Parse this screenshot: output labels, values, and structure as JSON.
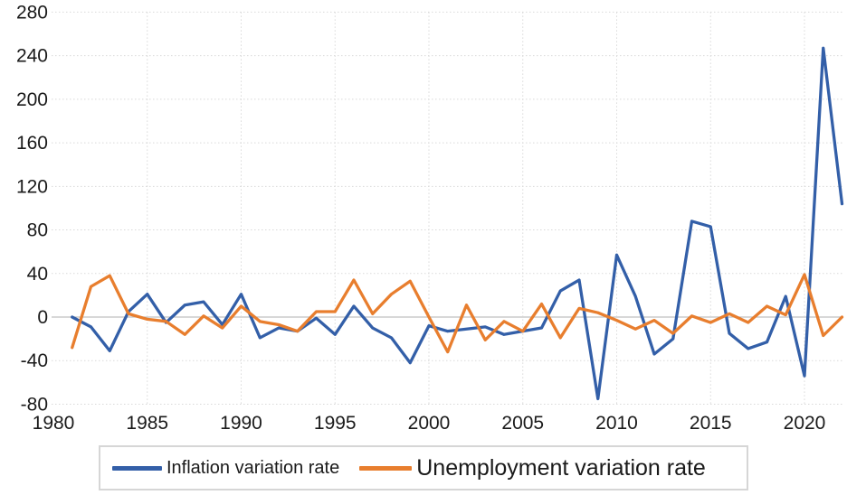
{
  "chart_data": {
    "type": "line",
    "x": [
      1981,
      1982,
      1983,
      1984,
      1985,
      1986,
      1987,
      1988,
      1989,
      1990,
      1991,
      1992,
      1993,
      1994,
      1995,
      1996,
      1997,
      1998,
      1999,
      2000,
      2001,
      2002,
      2003,
      2004,
      2005,
      2006,
      2007,
      2008,
      2009,
      2010,
      2011,
      2012,
      2013,
      2014,
      2015,
      2016,
      2017,
      2018,
      2019,
      2020,
      2021,
      2022
    ],
    "series": [
      {
        "name": "Inflation variation rate",
        "color": "#335fa8",
        "values": [
          0,
          -9,
          -31,
          5,
          21,
          -5,
          11,
          14,
          -7,
          21,
          -19,
          -10,
          -13,
          -1,
          -16,
          10,
          -10,
          -19,
          -42,
          -8,
          -13,
          -11,
          -9,
          -16,
          -13,
          -10,
          24,
          34,
          -75,
          57,
          19,
          -34,
          -20,
          88,
          83,
          -15,
          -29,
          -23,
          19,
          -54,
          247,
          104
        ]
      },
      {
        "name": "Unemployment variation rate",
        "color": "#e87e2e",
        "values": [
          -28,
          28,
          38,
          3,
          -2,
          -4,
          -16,
          1,
          -10,
          10,
          -4,
          -7,
          -13,
          5,
          5,
          34,
          3,
          21,
          33,
          0,
          -32,
          11,
          -21,
          -4,
          -13,
          12,
          -19,
          8,
          4,
          -3,
          -11,
          -3,
          -15,
          1,
          -5,
          3,
          -5,
          10,
          2,
          39,
          -17,
          0
        ]
      }
    ],
    "title": "",
    "xlabel": "",
    "ylabel": "",
    "xlim": [
      1980,
      2022.3
    ],
    "ylim": [
      -80,
      280
    ],
    "yticks": [
      -80,
      -40,
      0,
      40,
      80,
      120,
      160,
      200,
      240,
      280
    ],
    "ytick_labels": [
      "-80",
      "-40",
      "0",
      "40",
      "80",
      "120",
      "160",
      "200",
      "240",
      "280"
    ],
    "xticks": [
      1980,
      1985,
      1990,
      1995,
      2000,
      2005,
      2010,
      2015,
      2020
    ],
    "xtick_labels": [
      "1980",
      "1985",
      "1990",
      "1995",
      "2000",
      "2005",
      "2010",
      "2015",
      "2020"
    ],
    "grid": "dotted",
    "zero_line": true,
    "legend_position": "bottom"
  },
  "colors": {
    "gridline": "#d9d9d9",
    "zero_line": "#c0c0c0",
    "tick_text": "#1a1a1a",
    "legend_border": "#d6d6d6",
    "background": "#ffffff"
  }
}
